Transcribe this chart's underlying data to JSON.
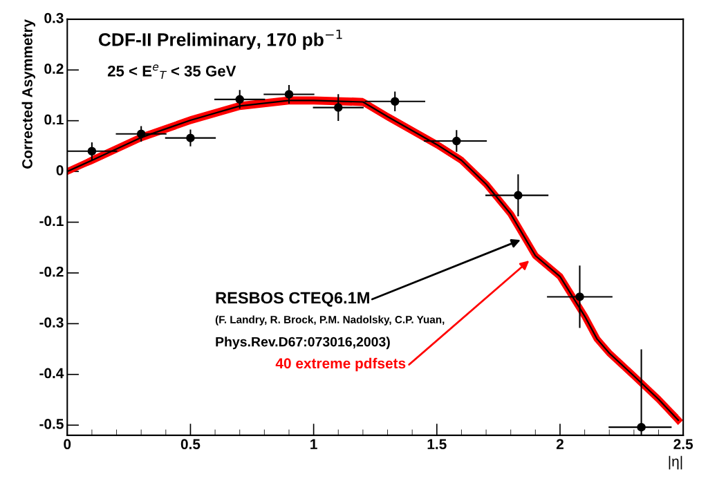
{
  "chart_data": {
    "type": "scatter",
    "title": "CDF-II Preliminary, 170 pb$^{−1}$",
    "subtitle": "25 < E$^{e}$$_{T}$ < 35 GeV",
    "ylabel": "Corrected Asymmetry",
    "xlabel": "|η|",
    "xlim": [
      0,
      2.5
    ],
    "xticks": [
      0,
      0.5,
      1,
      1.5,
      2,
      2.5
    ],
    "ylim": [
      -0.52,
      0.3
    ],
    "yticks": [
      -0.5,
      -0.4,
      -0.3,
      -0.2,
      -0.1,
      0,
      0.1,
      0.2,
      0.3
    ],
    "grid": false,
    "legend": false,
    "series": [
      {
        "type": "line",
        "color": "#ff0000",
        "marker": "none",
        "x": [
          0,
          0.1,
          0.3,
          0.5,
          0.7,
          0.9,
          1.0,
          1.2,
          1.3,
          1.5,
          1.6,
          1.7,
          1.8,
          1.9,
          2.0,
          2.1,
          2.15,
          2.2,
          2.3,
          2.4,
          2.48
        ],
        "values": [
          0,
          0.022,
          0.067,
          0.101,
          0.129,
          0.14,
          0.14,
          0.137,
          0.108,
          0.053,
          0.022,
          -0.025,
          -0.084,
          -0.166,
          -0.207,
          -0.285,
          -0.33,
          -0.358,
          -0.403,
          -0.449,
          -0.49
        ],
        "lower": [
          -0.004,
          0.014,
          0.059,
          0.093,
          0.121,
          0.132,
          0.132,
          0.129,
          0.1,
          0.045,
          0.014,
          -0.033,
          -0.092,
          -0.174,
          -0.215,
          -0.293,
          -0.338,
          -0.366,
          -0.411,
          -0.457,
          -0.5
        ],
        "upper": [
          0.004,
          0.03,
          0.075,
          0.109,
          0.137,
          0.148,
          0.148,
          0.145,
          0.116,
          0.061,
          0.03,
          -0.017,
          -0.076,
          -0.158,
          -0.199,
          -0.277,
          -0.322,
          -0.35,
          -0.395,
          -0.441,
          -0.48
        ]
      },
      {
        "type": "line",
        "color": "#000000",
        "marker": "none",
        "x": [
          0,
          0.1,
          0.3,
          0.5,
          0.7,
          0.9,
          1.0,
          1.2,
          1.3,
          1.5,
          1.6,
          1.7,
          1.8,
          1.9,
          2.0,
          2.1,
          2.15,
          2.2,
          2.3,
          2.4,
          2.48
        ],
        "values": [
          0,
          0.022,
          0.067,
          0.101,
          0.129,
          0.14,
          0.14,
          0.137,
          0.108,
          0.053,
          0.022,
          -0.025,
          -0.084,
          -0.166,
          -0.207,
          -0.285,
          -0.33,
          -0.358,
          -0.403,
          -0.449,
          -0.49
        ]
      },
      {
        "color": "#000000",
        "marker": "circle",
        "x": [
          0.1,
          0.3,
          0.5,
          0.7,
          0.9,
          1.1,
          1.33,
          1.58,
          1.83,
          2.08,
          2.33
        ],
        "values": [
          0.04,
          0.074,
          0.066,
          0.142,
          0.152,
          0.126,
          0.138,
          0.06,
          -0.047,
          -0.247,
          -0.504
        ],
        "errors": [
          0.016,
          0.014,
          0.015,
          0.017,
          0.017,
          0.025,
          0.018,
          0.02,
          0.04,
          0.06,
          [
            -0.52,
            -0.352
          ]
        ],
        "xerrors": [
          0.1,
          0.1,
          0.1,
          0.1,
          0.1,
          0.1,
          [
            1.21,
            1.45
          ],
          [
            1.45,
            1.7
          ],
          [
            1.7,
            1.95
          ],
          [
            1.95,
            2.21
          ],
          [
            2.2,
            2.45
          ]
        ]
      }
    ],
    "annotations": [
      {
        "text": "RESBOS CTEQ6.1M",
        "x": 1.84,
        "y": -0.135
      },
      "(F. Landry, R. Brock, P.M. Nadolsky, C.P. Yuan,",
      "Phys.Rev.D67:073016,2003)",
      "40 extreme pdfsets"
    ]
  }
}
